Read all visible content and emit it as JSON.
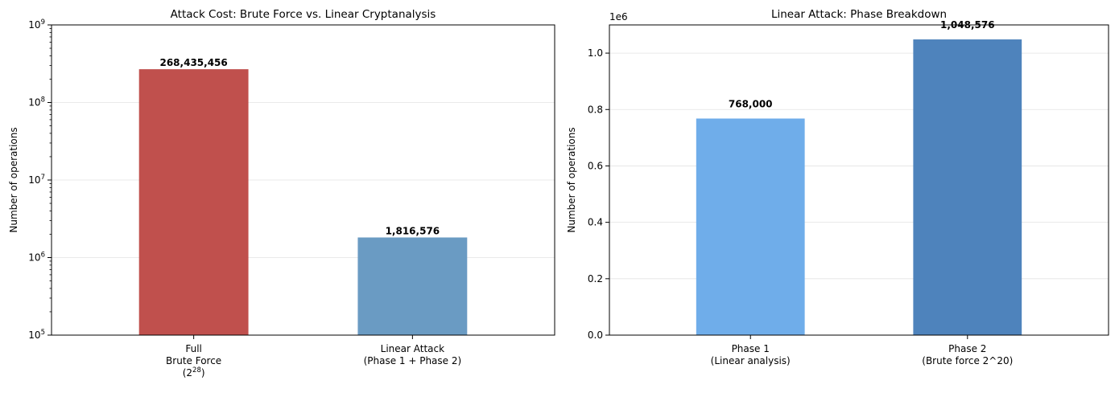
{
  "chart_data": [
    {
      "type": "bar",
      "title": "Attack Cost: Brute Force vs. Linear Cryptanalysis",
      "ylabel": "Number of operations",
      "yscale": "log",
      "ylim": [
        100000,
        1000000000
      ],
      "grid": "y",
      "categories": [
        [
          "Full",
          "Brute Force",
          "(2^28)"
        ],
        [
          "Linear Attack",
          "(Phase 1 + Phase 2)"
        ]
      ],
      "values": [
        268435456,
        1816576
      ],
      "value_labels": [
        "268,435,456",
        "1,816,576"
      ],
      "colors": [
        "#c0504d",
        "#6a9bc3"
      ],
      "yticks": [
        {
          "mantissa": "10",
          "exp": "5"
        },
        {
          "mantissa": "10",
          "exp": "6"
        },
        {
          "mantissa": "10",
          "exp": "7"
        },
        {
          "mantissa": "10",
          "exp": "8"
        },
        {
          "mantissa": "10",
          "exp": "9"
        }
      ]
    },
    {
      "type": "bar",
      "title": "Linear Attack: Phase Breakdown",
      "ylabel": "Number of operations",
      "yscale": "linear",
      "ylim": [
        0,
        1100000
      ],
      "grid": "y",
      "offset_label": "1e6",
      "categories": [
        [
          "Phase 1",
          "(Linear analysis)"
        ],
        [
          "Phase 2",
          "(Brute force 2^20)"
        ]
      ],
      "values": [
        768000,
        1048576
      ],
      "value_labels": [
        "768,000",
        "1,048,576"
      ],
      "colors": [
        "#6fadea",
        "#4e83bc"
      ],
      "yticks": [
        "0.0",
        "0.2",
        "0.4",
        "0.6",
        "0.8",
        "1.0"
      ]
    }
  ]
}
